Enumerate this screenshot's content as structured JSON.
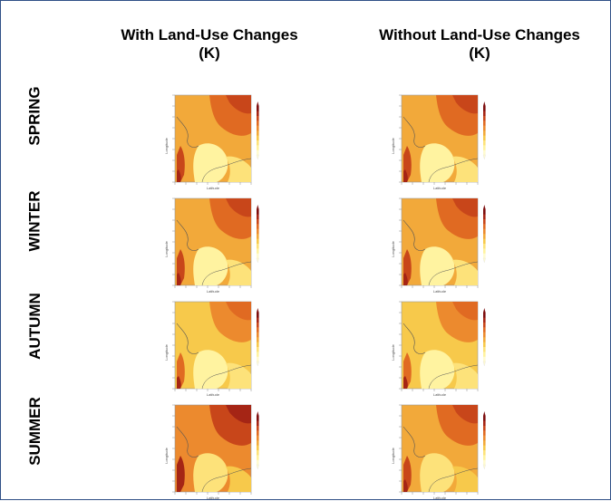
{
  "columns": [
    {
      "line1": "With Land-Use Changes",
      "line2": "(K)"
    },
    {
      "line1": "Without Land-Use Changes",
      "line2": "(K)"
    }
  ],
  "rows": [
    {
      "label": "SPRING",
      "intensity": 0.65
    },
    {
      "label": "WINTER",
      "intensity": 0.6
    },
    {
      "label": "AUTUMN",
      "intensity": 0.35
    },
    {
      "label": "SUMMER",
      "intensity": 0.8
    }
  ],
  "panel": {
    "ylabel": "Longitude",
    "xlabel": "Latitude"
  },
  "colors": {
    "frame": "#2f4f86",
    "scale": [
      "#fffbd0",
      "#fff3a0",
      "#fde27a",
      "#f7c94b",
      "#f2a93a",
      "#ec8a2e",
      "#e06a22",
      "#c8461a",
      "#a52515",
      "#7d0e0e"
    ]
  }
}
